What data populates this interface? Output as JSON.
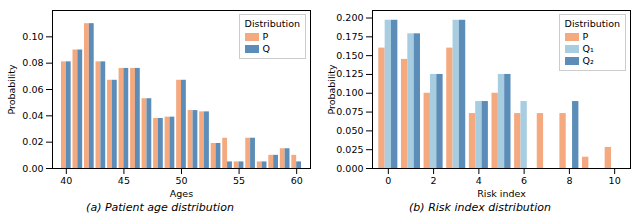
{
  "chart_data": [
    {
      "type": "bar",
      "title": "(a) Patient age distribution",
      "xlabel": "Ages",
      "ylabel": "Probability",
      "x": [
        40,
        41,
        42,
        43,
        44,
        45,
        46,
        47,
        48,
        49,
        50,
        51,
        52,
        53,
        54,
        55,
        56,
        57,
        58,
        59,
        60
      ],
      "series": [
        {
          "name": "P",
          "color": "#f4a97f",
          "values": [
            0.081,
            0.09,
            0.11,
            0.081,
            0.067,
            0.076,
            0.076,
            0.053,
            0.038,
            0.039,
            0.067,
            0.044,
            0.043,
            0.019,
            0.023,
            0.005,
            0.023,
            0.005,
            0.01,
            0.015,
            0.01
          ]
        },
        {
          "name": "Q",
          "color": "#5b8db8",
          "values": [
            0.081,
            0.09,
            0.11,
            0.081,
            0.067,
            0.076,
            0.076,
            0.053,
            0.038,
            0.039,
            0.067,
            0.044,
            0.043,
            0.019,
            0.005,
            0.005,
            0.023,
            0.005,
            0.01,
            0.015,
            0.005
          ]
        }
      ],
      "xlim": [
        38.8,
        61.2
      ],
      "xticks": [
        40,
        45,
        50,
        55,
        60
      ],
      "ylim": [
        0,
        0.12
      ],
      "yticks": [
        {
          "value": 0,
          "label": "0.00"
        },
        0.02,
        0.04,
        0.06,
        0.08,
        {
          "value": 0.1,
          "label": "0.10"
        }
      ],
      "legend": "upper right",
      "legend_title": "Distribution"
    },
    {
      "type": "bar",
      "title": "(b) Risk index distribution",
      "xlabel": "Risk index",
      "ylabel": "Probability",
      "x": [
        0,
        1,
        2,
        3,
        4,
        5,
        6,
        7,
        8,
        9,
        10
      ],
      "series": [
        {
          "name": "P",
          "color": "#f4a97f",
          "values": [
            0.16,
            0.145,
            0.1,
            0.16,
            0.073,
            0.1,
            0.073,
            0.073,
            0.073,
            0.015,
            0.028
          ]
        },
        {
          "name": "Q₁",
          "color": "#a8cce0",
          "values": [
            0.197,
            0.179,
            0.125,
            0.197,
            0.089,
            0.125,
            0.089,
            0.0,
            0.0,
            0.0,
            0.0
          ]
        },
        {
          "name": "Q₂",
          "color": "#5b8db8",
          "values": [
            0.197,
            0.179,
            0.125,
            0.197,
            0.089,
            0.125,
            0.0,
            0.0,
            0.089,
            0.0,
            0.0
          ]
        }
      ],
      "xlim": [
        -0.7,
        10.7
      ],
      "xticks": [
        0,
        2,
        4,
        6,
        8,
        10
      ],
      "ylim": [
        0,
        0.21
      ],
      "yticks": [
        {
          "value": 0,
          "label": "0.000"
        },
        0.025,
        {
          "value": 0.05,
          "label": "0.050"
        },
        0.075,
        {
          "value": 0.1,
          "label": "0.100"
        },
        0.125,
        {
          "value": 0.15,
          "label": "0.150"
        },
        0.175,
        {
          "value": 0.2,
          "label": "0.200"
        }
      ],
      "legend": "upper right",
      "legend_title": "Distribution"
    }
  ]
}
